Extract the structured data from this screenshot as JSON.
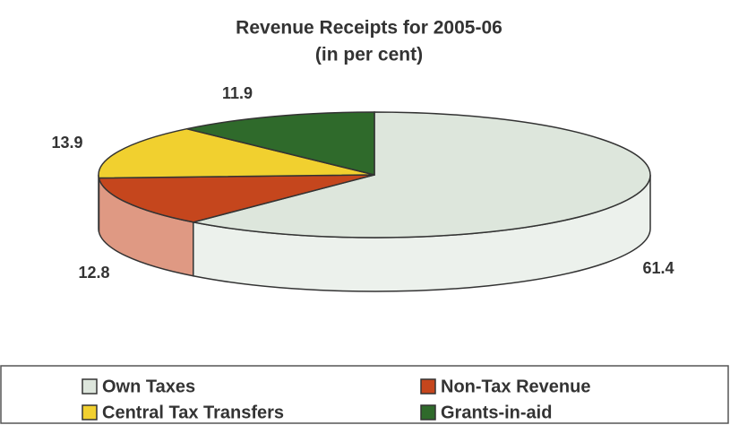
{
  "chart_data": {
    "type": "pie3d",
    "title": "Revenue Receipts for  2005-06",
    "subtitle": "(in per cent)",
    "categories": [
      "Own Taxes",
      "Non-Tax Revenue",
      "Central Tax Transfers",
      "Grants-in-aid"
    ],
    "values": [
      61.4,
      12.8,
      13.9,
      11.9
    ],
    "colors": [
      "#dde6dc",
      "#c5461d",
      "#f1d02f",
      "#2f6a2b"
    ]
  }
}
